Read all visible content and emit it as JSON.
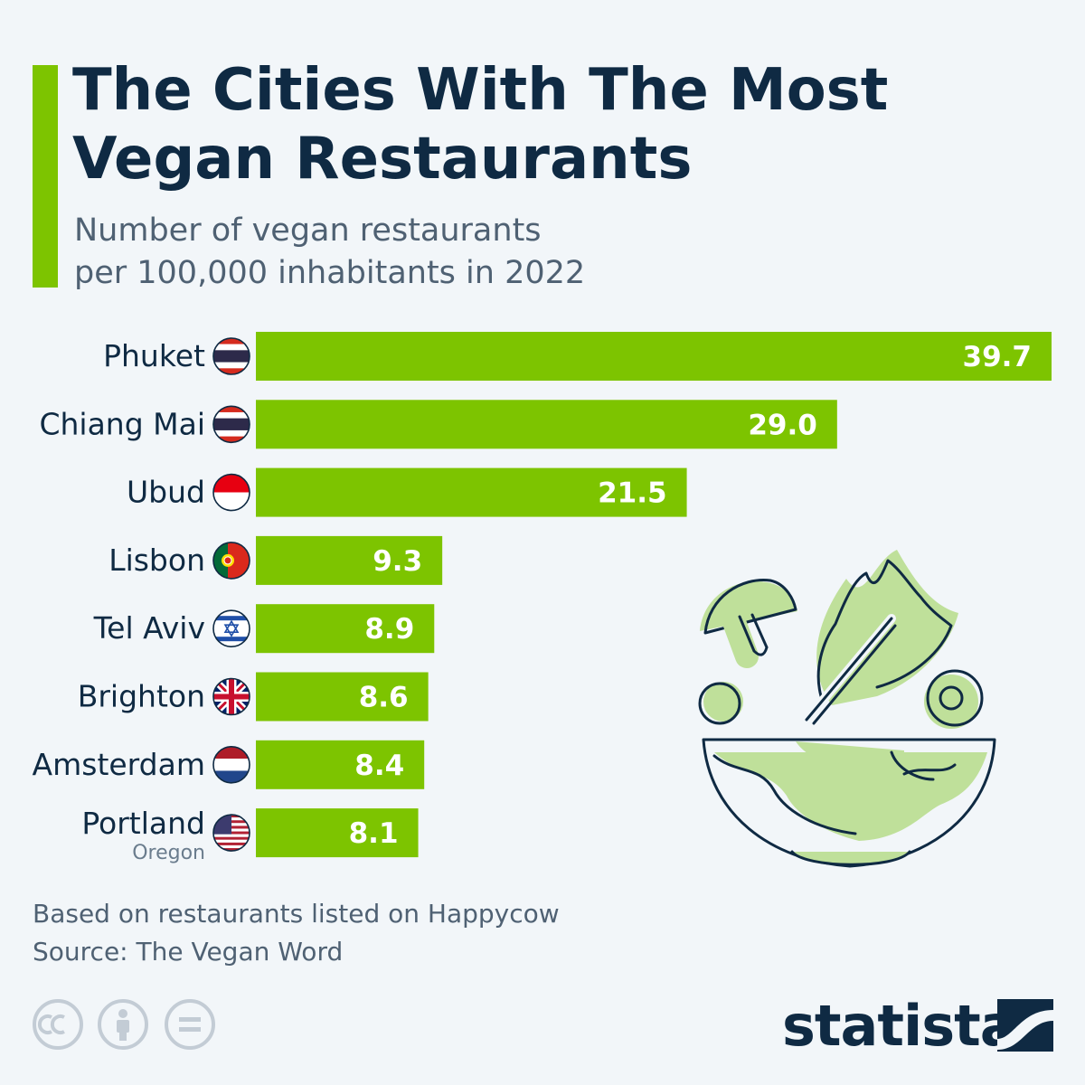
{
  "header": {
    "title": "The Cities With The Most Vegan Restaurants",
    "subtitle_line1": "Number of vegan restaurants",
    "subtitle_line2": "per 100,000 inhabitants in 2022"
  },
  "chart_data": {
    "type": "bar",
    "orientation": "horizontal",
    "title": "The Cities With The Most Vegan Restaurants",
    "subtitle": "Number of vegan restaurants per 100,000 inhabitants in 2022",
    "categories": [
      "Phuket",
      "Chiang Mai",
      "Ubud",
      "Lisbon",
      "Tel Aviv",
      "Brighton",
      "Amsterdam",
      "Portland"
    ],
    "category_sublabels": [
      "",
      "",
      "",
      "",
      "",
      "",
      "",
      "Oregon"
    ],
    "flags": [
      "thailand-flag-icon",
      "thailand-flag-icon",
      "indonesia-flag-icon",
      "portugal-flag-icon",
      "israel-flag-icon",
      "uk-flag-icon",
      "netherlands-flag-icon",
      "usa-flag-icon"
    ],
    "values": [
      39.7,
      29.0,
      21.5,
      9.3,
      8.9,
      8.6,
      8.4,
      8.1
    ],
    "value_labels": [
      "39.7",
      "29.0",
      "21.5",
      "9.3",
      "8.9",
      "8.6",
      "8.4",
      "8.1"
    ],
    "xlim": [
      0,
      39.7
    ],
    "bar_color": "#7dc400",
    "label_color": "#ffffff"
  },
  "footer": {
    "note": "Based on restaurants listed on Happycow",
    "source": "Source: The Vegan Word",
    "brand": "statista"
  },
  "icons": [
    "cc-icon",
    "attribution-icon",
    "no-derivatives-icon",
    "statista-logo-icon",
    "salad-bowl-icon"
  ],
  "colors": {
    "accent": "#7dc400",
    "text": "#0f2a43",
    "muted": "#4f6173",
    "background": "#f2f6f9"
  }
}
